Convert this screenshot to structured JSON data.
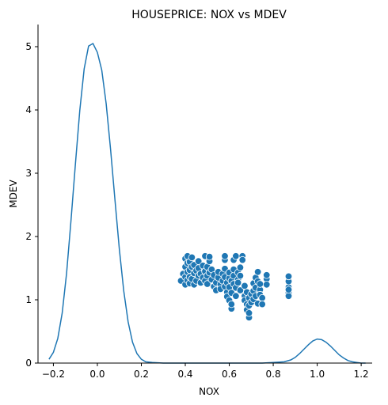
{
  "chart_data": {
    "type": "scatter",
    "title": "HOUSEPRICE: NOX vs MDEV",
    "xlabel": "NOX",
    "ylabel": "MDEV",
    "xlim": [
      -0.27,
      1.25
    ],
    "ylim": [
      0,
      5.35
    ],
    "xticks": [
      -0.2,
      0.0,
      0.2,
      0.4,
      0.6,
      0.8,
      1.0,
      1.2
    ],
    "xtick_labels": [
      "−0.2",
      "0.0",
      "0.2",
      "0.4",
      "0.6",
      "0.8",
      "1.0",
      "1.2"
    ],
    "yticks": [
      0,
      1,
      2,
      3,
      4,
      5
    ],
    "ytick_labels": [
      "0",
      "1",
      "2",
      "3",
      "4",
      "5"
    ],
    "grid": false,
    "color": "#1f77b4",
    "density_curve": {
      "x": [
        -0.22,
        -0.2,
        -0.18,
        -0.16,
        -0.14,
        -0.12,
        -0.1,
        -0.08,
        -0.06,
        -0.04,
        -0.02,
        0.0,
        0.02,
        0.04,
        0.06,
        0.08,
        0.1,
        0.12,
        0.14,
        0.16,
        0.18,
        0.2,
        0.22,
        0.25,
        0.3,
        0.4,
        0.5,
        0.6,
        0.7,
        0.75,
        0.8,
        0.85,
        0.88,
        0.9,
        0.92,
        0.94,
        0.96,
        0.98,
        1.0,
        1.02,
        1.04,
        1.06,
        1.08,
        1.1,
        1.12,
        1.14,
        1.16,
        1.18,
        1.2,
        1.22
      ],
      "y": [
        0.06,
        0.17,
        0.39,
        0.79,
        1.42,
        2.25,
        3.14,
        3.99,
        4.65,
        5.01,
        5.05,
        4.91,
        4.63,
        4.1,
        3.38,
        2.58,
        1.8,
        1.14,
        0.65,
        0.33,
        0.15,
        0.06,
        0.02,
        0.01,
        0.0,
        0.0,
        0.0,
        0.0,
        0.0,
        0.0,
        0.01,
        0.02,
        0.05,
        0.09,
        0.15,
        0.22,
        0.29,
        0.35,
        0.38,
        0.37,
        0.33,
        0.27,
        0.2,
        0.13,
        0.08,
        0.04,
        0.02,
        0.01,
        0.0,
        0.0
      ]
    },
    "points": [
      [
        0.38,
        1.3
      ],
      [
        0.39,
        1.41
      ],
      [
        0.4,
        1.24
      ],
      [
        0.4,
        1.36
      ],
      [
        0.4,
        1.52
      ],
      [
        0.4,
        1.65
      ],
      [
        0.41,
        1.31
      ],
      [
        0.41,
        1.44
      ],
      [
        0.41,
        1.58
      ],
      [
        0.41,
        1.69
      ],
      [
        0.42,
        1.26
      ],
      [
        0.42,
        1.36
      ],
      [
        0.42,
        1.47
      ],
      [
        0.42,
        1.6
      ],
      [
        0.43,
        1.33
      ],
      [
        0.43,
        1.52
      ],
      [
        0.43,
        1.67
      ],
      [
        0.44,
        1.24
      ],
      [
        0.44,
        1.42
      ],
      [
        0.44,
        1.55
      ],
      [
        0.45,
        1.3
      ],
      [
        0.45,
        1.46
      ],
      [
        0.46,
        1.38
      ],
      [
        0.46,
        1.5
      ],
      [
        0.46,
        1.61
      ],
      [
        0.47,
        1.27
      ],
      [
        0.47,
        1.41
      ],
      [
        0.48,
        1.35
      ],
      [
        0.48,
        1.54
      ],
      [
        0.49,
        1.3
      ],
      [
        0.49,
        1.45
      ],
      [
        0.49,
        1.69
      ],
      [
        0.5,
        1.38
      ],
      [
        0.5,
        1.52
      ],
      [
        0.5,
        1.25
      ],
      [
        0.51,
        1.43
      ],
      [
        0.51,
        1.61
      ],
      [
        0.51,
        1.68
      ],
      [
        0.52,
        1.32
      ],
      [
        0.52,
        1.48
      ],
      [
        0.53,
        1.39
      ],
      [
        0.53,
        1.21
      ],
      [
        0.54,
        1.27
      ],
      [
        0.54,
        1.15
      ],
      [
        0.55,
        1.35
      ],
      [
        0.55,
        1.44
      ],
      [
        0.56,
        1.24
      ],
      [
        0.56,
        1.17
      ],
      [
        0.57,
        1.3
      ],
      [
        0.57,
        1.41
      ],
      [
        0.58,
        1.21
      ],
      [
        0.58,
        1.36
      ],
      [
        0.58,
        1.49
      ],
      [
        0.58,
        1.63
      ],
      [
        0.58,
        1.69
      ],
      [
        0.59,
        1.12
      ],
      [
        0.59,
        1.05
      ],
      [
        0.59,
        1.27
      ],
      [
        0.6,
        1.34
      ],
      [
        0.6,
        1.43
      ],
      [
        0.6,
        0.99
      ],
      [
        0.6,
        1.2
      ],
      [
        0.61,
        0.86
      ],
      [
        0.61,
        0.93
      ],
      [
        0.61,
        1.11
      ],
      [
        0.61,
        1.3
      ],
      [
        0.62,
        1.38
      ],
      [
        0.62,
        1.25
      ],
      [
        0.62,
        1.48
      ],
      [
        0.62,
        1.63
      ],
      [
        0.63,
        1.69
      ],
      [
        0.63,
        1.19
      ],
      [
        0.63,
        1.06
      ],
      [
        0.64,
        1.32
      ],
      [
        0.64,
        1.43
      ],
      [
        0.64,
        1.27
      ],
      [
        0.65,
        1.15
      ],
      [
        0.65,
        1.38
      ],
      [
        0.65,
        1.51
      ],
      [
        0.66,
        1.69
      ],
      [
        0.66,
        1.63
      ],
      [
        0.67,
        1.06
      ],
      [
        0.67,
        1.22
      ],
      [
        0.67,
        0.99
      ],
      [
        0.68,
        0.93
      ],
      [
        0.68,
        1.12
      ],
      [
        0.68,
        0.84
      ],
      [
        0.69,
        0.72
      ],
      [
        0.69,
        0.79
      ],
      [
        0.69,
        0.91
      ],
      [
        0.69,
        1.03
      ],
      [
        0.7,
        1.09
      ],
      [
        0.7,
        0.96
      ],
      [
        0.71,
        1.14
      ],
      [
        0.71,
        1.01
      ],
      [
        0.71,
        1.26
      ],
      [
        0.72,
        1.35
      ],
      [
        0.72,
        1.19
      ],
      [
        0.72,
        1.06
      ],
      [
        0.73,
        1.44
      ],
      [
        0.73,
        1.29
      ],
      [
        0.73,
        0.94
      ],
      [
        0.74,
        1.16
      ],
      [
        0.74,
        1.25
      ],
      [
        0.74,
        1.08
      ],
      [
        0.75,
        1.03
      ],
      [
        0.75,
        0.93
      ],
      [
        0.77,
        1.33
      ],
      [
        0.77,
        1.24
      ],
      [
        0.77,
        1.39
      ],
      [
        0.87,
        1.11
      ],
      [
        0.87,
        1.2
      ],
      [
        0.87,
        1.29
      ],
      [
        0.87,
        1.37
      ],
      [
        0.87,
        1.06
      ],
      [
        0.87,
        1.16
      ]
    ]
  }
}
